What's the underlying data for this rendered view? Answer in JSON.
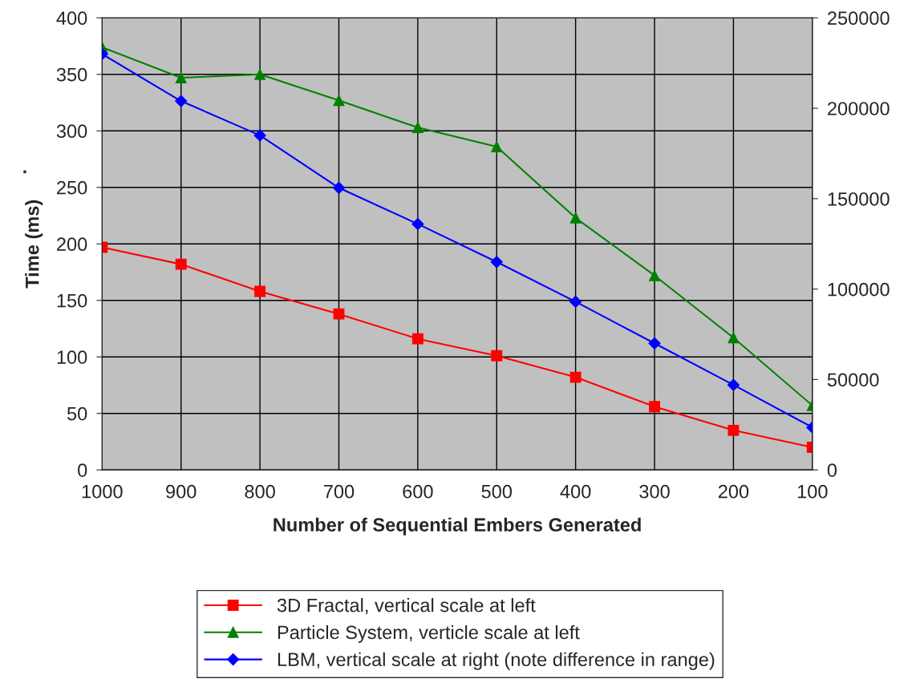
{
  "chart_data": {
    "type": "line",
    "xlabel": "Number of Sequential Embers Generated",
    "ylabel": "Time (ms)",
    "categories": [
      "1000",
      "900",
      "800",
      "700",
      "600",
      "500",
      "400",
      "300",
      "200",
      "100"
    ],
    "series": [
      {
        "name": "3D Fractal, vertical scale at left",
        "color": "#ff0000",
        "marker": "square",
        "values": [
          197,
          182,
          158,
          138,
          116,
          101,
          82,
          56,
          35,
          20
        ]
      },
      {
        "name": "Particle System, verticle scale at left",
        "color": "#008000",
        "marker": "triangle",
        "values": [
          374,
          347,
          350,
          327,
          303,
          286,
          223,
          172,
          117,
          57
        ]
      },
      {
        "name": "LBM, vertical scale at right (note difference in range)",
        "color": "#0000ff",
        "marker": "diamond",
        "axis": "y2",
        "values": [
          230000,
          204000,
          185000,
          156000,
          136000,
          115000,
          93000,
          70000,
          47000,
          23500
        ]
      }
    ],
    "ylim": [
      0,
      400
    ],
    "yticks": [
      0,
      50,
      100,
      150,
      200,
      250,
      300,
      350,
      400
    ],
    "y2lim": [
      0,
      250000
    ],
    "y2ticks": [
      0,
      50000,
      100000,
      150000,
      200000,
      250000
    ],
    "grid": true,
    "legend": "bottom",
    "annotations": [
      "."
    ]
  }
}
